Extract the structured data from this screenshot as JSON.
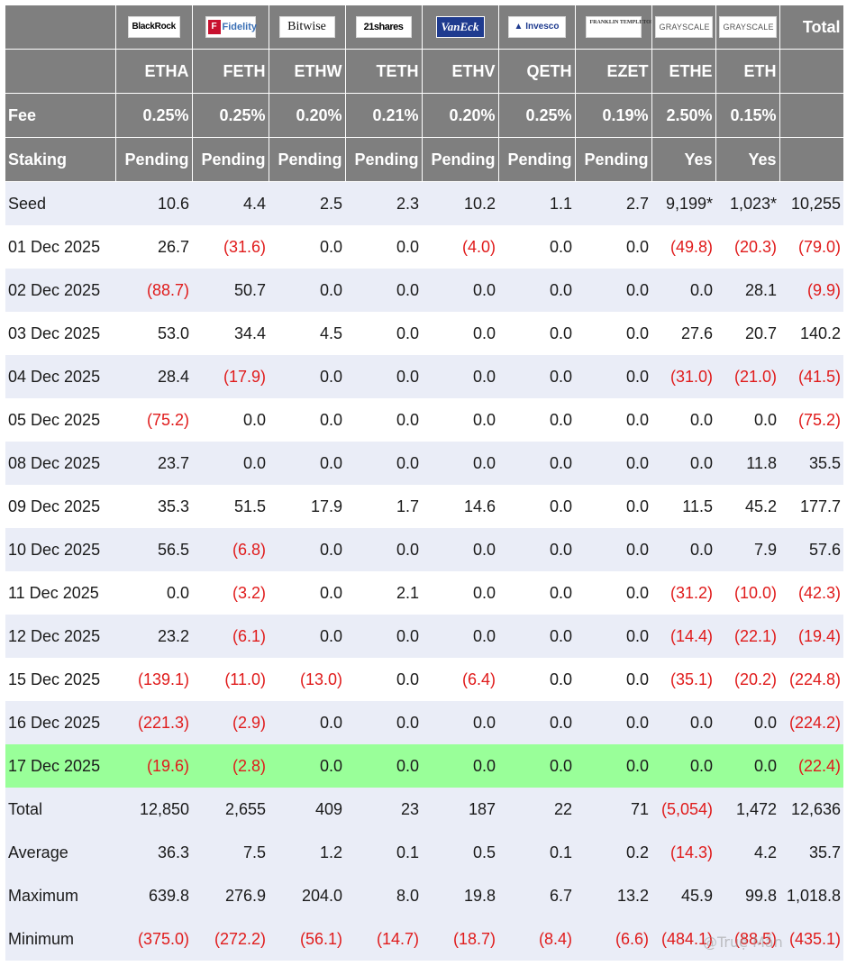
{
  "header": {
    "issuers": [
      {
        "name": "BlackRock",
        "icon": "blackrock-logo"
      },
      {
        "name": "Fidelity",
        "icon": "fidelity-logo"
      },
      {
        "name": "Bitwise",
        "icon": "bitwise-logo"
      },
      {
        "name": "21shares",
        "icon": "21shares-logo"
      },
      {
        "name": "VanEck",
        "icon": "vaneck-logo"
      },
      {
        "name": "Invesco",
        "icon": "invesco-logo"
      },
      {
        "name": "FRANKLIN TEMPLETON",
        "icon": "franklin-templeton-logo"
      },
      {
        "name": "GRAYSCALE",
        "icon": "grayscale-logo"
      },
      {
        "name": "GRAYSCALE",
        "icon": "grayscale-logo"
      }
    ],
    "total_label": "Total",
    "tickers": [
      "ETHA",
      "FETH",
      "ETHW",
      "TETH",
      "ETHV",
      "QETH",
      "EZET",
      "ETHE",
      "ETH"
    ],
    "fee_label": "Fee",
    "fees": [
      "0.25%",
      "0.25%",
      "0.20%",
      "0.21%",
      "0.20%",
      "0.25%",
      "0.19%",
      "2.50%",
      "0.15%"
    ],
    "staking_label": "Staking",
    "staking": [
      "Pending",
      "Pending",
      "Pending",
      "Pending",
      "Pending",
      "Pending",
      "Pending",
      "Yes",
      "Yes"
    ]
  },
  "rows": [
    {
      "label": "Seed",
      "values": [
        "10.6",
        "4.4",
        "2.5",
        "2.3",
        "10.2",
        "1.1",
        "2.7",
        "9,199*",
        "1,023*",
        "10,255"
      ]
    },
    {
      "label": "01 Dec 2025",
      "values": [
        "26.7",
        "(31.6)",
        "0.0",
        "0.0",
        "(4.0)",
        "0.0",
        "0.0",
        "(49.8)",
        "(20.3)",
        "(79.0)"
      ]
    },
    {
      "label": "02 Dec 2025",
      "values": [
        "(88.7)",
        "50.7",
        "0.0",
        "0.0",
        "0.0",
        "0.0",
        "0.0",
        "0.0",
        "28.1",
        "(9.9)"
      ]
    },
    {
      "label": "03 Dec 2025",
      "values": [
        "53.0",
        "34.4",
        "4.5",
        "0.0",
        "0.0",
        "0.0",
        "0.0",
        "27.6",
        "20.7",
        "140.2"
      ]
    },
    {
      "label": "04 Dec 2025",
      "values": [
        "28.4",
        "(17.9)",
        "0.0",
        "0.0",
        "0.0",
        "0.0",
        "0.0",
        "(31.0)",
        "(21.0)",
        "(41.5)"
      ]
    },
    {
      "label": "05 Dec 2025",
      "values": [
        "(75.2)",
        "0.0",
        "0.0",
        "0.0",
        "0.0",
        "0.0",
        "0.0",
        "0.0",
        "0.0",
        "(75.2)"
      ]
    },
    {
      "label": "08 Dec 2025",
      "values": [
        "23.7",
        "0.0",
        "0.0",
        "0.0",
        "0.0",
        "0.0",
        "0.0",
        "0.0",
        "11.8",
        "35.5"
      ]
    },
    {
      "label": "09 Dec 2025",
      "values": [
        "35.3",
        "51.5",
        "17.9",
        "1.7",
        "14.6",
        "0.0",
        "0.0",
        "11.5",
        "45.2",
        "177.7"
      ]
    },
    {
      "label": "10 Dec 2025",
      "values": [
        "56.5",
        "(6.8)",
        "0.0",
        "0.0",
        "0.0",
        "0.0",
        "0.0",
        "0.0",
        "7.9",
        "57.6"
      ]
    },
    {
      "label": "11 Dec 2025",
      "values": [
        "0.0",
        "(3.2)",
        "0.0",
        "2.1",
        "0.0",
        "0.0",
        "0.0",
        "(31.2)",
        "(10.0)",
        "(42.3)"
      ]
    },
    {
      "label": "12 Dec 2025",
      "values": [
        "23.2",
        "(6.1)",
        "0.0",
        "0.0",
        "0.0",
        "0.0",
        "0.0",
        "(14.4)",
        "(22.1)",
        "(19.4)"
      ]
    },
    {
      "label": "15 Dec 2025",
      "values": [
        "(139.1)",
        "(11.0)",
        "(13.0)",
        "0.0",
        "(6.4)",
        "0.0",
        "0.0",
        "(35.1)",
        "(20.2)",
        "(224.8)"
      ]
    },
    {
      "label": "16 Dec 2025",
      "values": [
        "(221.3)",
        "(2.9)",
        "0.0",
        "0.0",
        "0.0",
        "0.0",
        "0.0",
        "0.0",
        "0.0",
        "(224.2)"
      ]
    },
    {
      "label": "17 Dec 2025",
      "values": [
        "(19.6)",
        "(2.8)",
        "0.0",
        "0.0",
        "0.0",
        "0.0",
        "0.0",
        "0.0",
        "0.0",
        "(22.4)"
      ],
      "highlight": true
    },
    {
      "label": "Total",
      "values": [
        "12,850",
        "2,655",
        "409",
        "23",
        "187",
        "22",
        "71",
        "(5,054)",
        "1,472",
        "12,636"
      ]
    },
    {
      "label": "Average",
      "values": [
        "36.3",
        "7.5",
        "1.2",
        "0.1",
        "0.5",
        "0.1",
        "0.2",
        "(14.3)",
        "4.2",
        "35.7"
      ]
    },
    {
      "label": "Maximum",
      "values": [
        "639.8",
        "276.9",
        "204.0",
        "8.0",
        "19.8",
        "6.7",
        "13.2",
        "45.9",
        "99.8",
        "1,018.8"
      ]
    },
    {
      "label": "Minimum",
      "values": [
        "(375.0)",
        "(272.2)",
        "(56.1)",
        "(14.7)",
        "(18.7)",
        "(8.4)",
        "(6.6)",
        "(484.1)",
        "(88.5)",
        "(435.1)"
      ]
    }
  ],
  "colors": {
    "header_bg": "#7f7f7f",
    "summary_bg": "#eaedf7",
    "highlight_bg": "#99ff99",
    "negative_text": "#e01b1b"
  },
  "watermark": "@Truệ Mẫn"
}
